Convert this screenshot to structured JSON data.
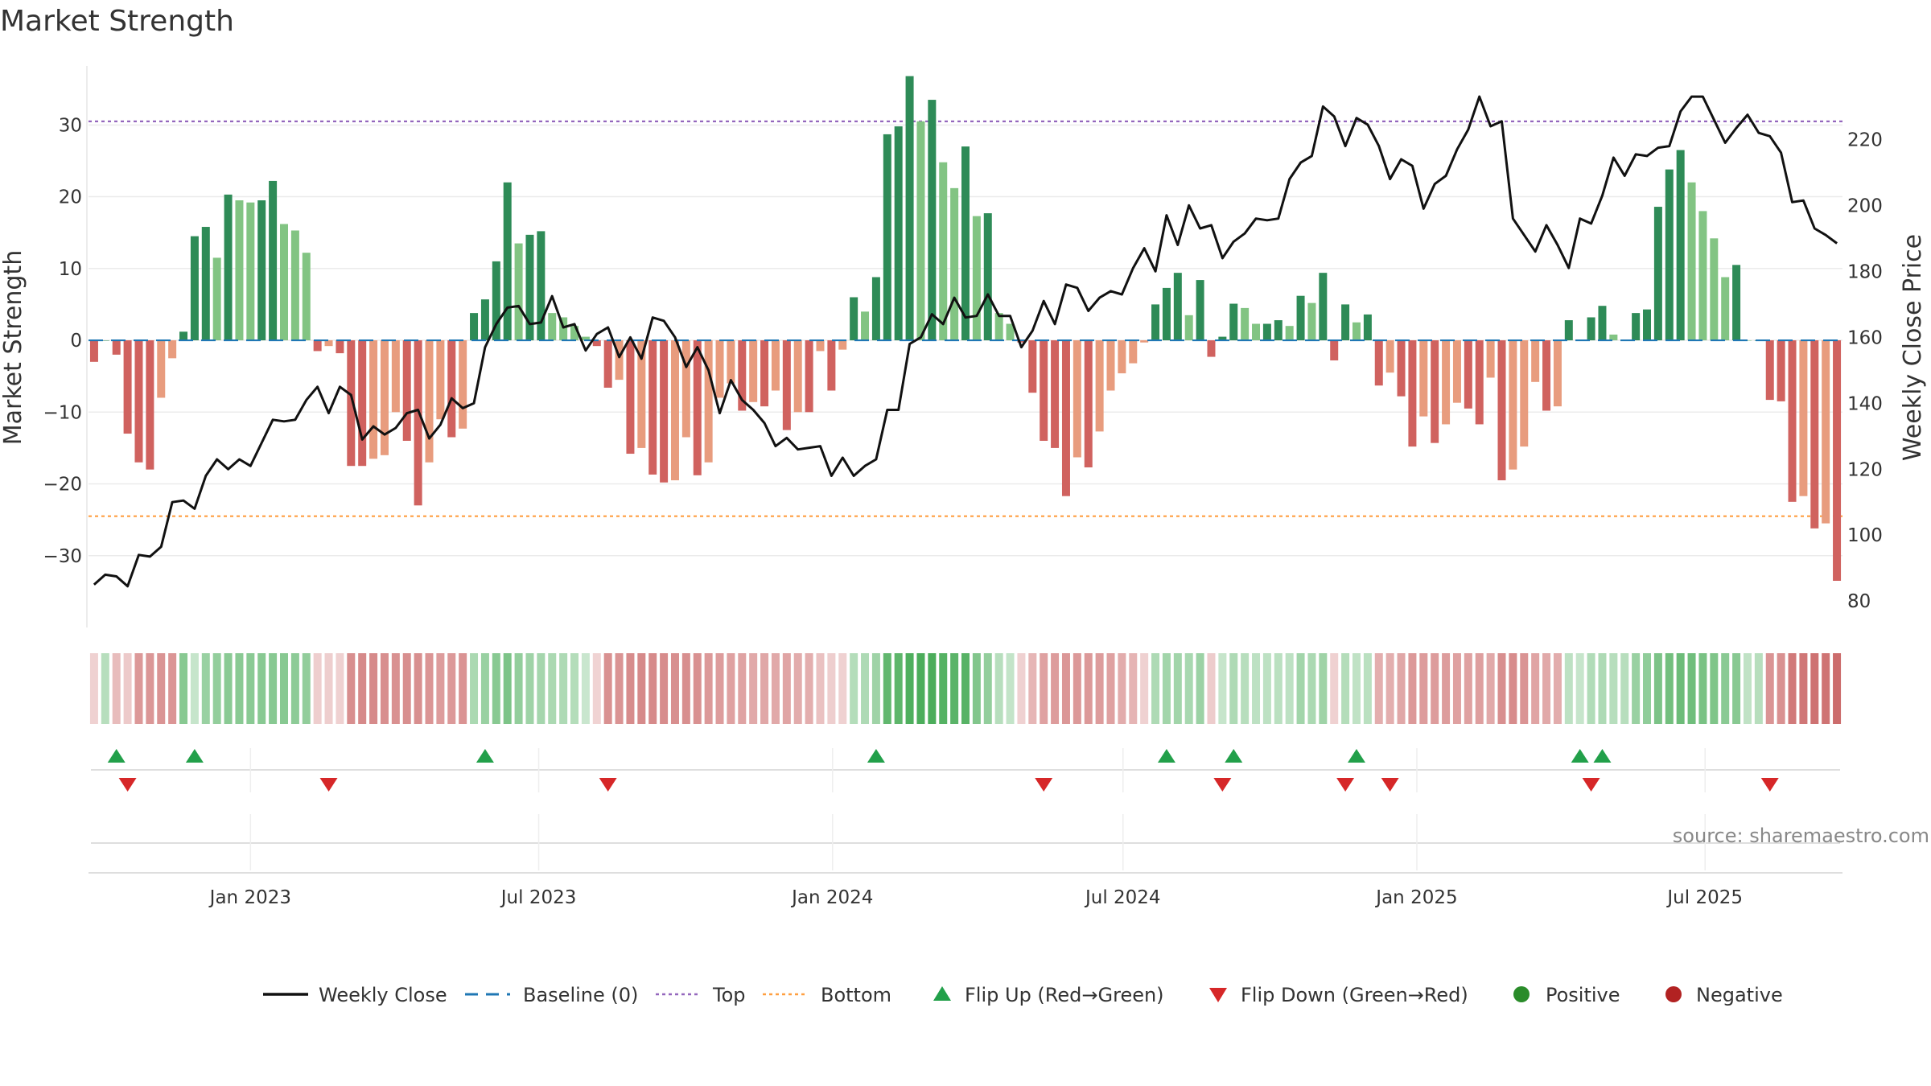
{
  "chart_data": {
    "type": "bar",
    "title": "Market Strength",
    "ylabel": "Market Strength",
    "y2label": "Weekly Close Price",
    "ylim": [
      -40,
      39
    ],
    "y2lim": [
      72,
      244
    ],
    "yticks": [
      30,
      20,
      10,
      0,
      -10,
      -20,
      -30
    ],
    "y2ticks": [
      220,
      200,
      180,
      160,
      140,
      120,
      100,
      80
    ],
    "xlim": [
      0,
      157
    ],
    "date_ticks": [
      {
        "label": "Jan 2023",
        "pos": 14.5
      },
      {
        "label": "Jul 2023",
        "pos": 40.3
      },
      {
        "label": "Jan 2024",
        "pos": 66.6
      },
      {
        "label": "Jul 2024",
        "pos": 92.6
      },
      {
        "label": "Jan 2025",
        "pos": 118.9
      },
      {
        "label": "Jul 2025",
        "pos": 144.7
      }
    ],
    "top": 30.5,
    "bottom": -24.5,
    "strength": [
      -3,
      0,
      -2,
      -13,
      -17,
      -18,
      -8,
      -2.5,
      1.2,
      14.5,
      15.8,
      11.5,
      20.3,
      19.5,
      19.2,
      19.5,
      22.2,
      16.2,
      15.3,
      12.2,
      -1.5,
      -0.8,
      -1.8,
      -17.5,
      -17.5,
      -16.5,
      -16,
      -10,
      -14,
      -23,
      -17,
      -11,
      -13.5,
      -12.3,
      3.8,
      5.7,
      11,
      22,
      13.5,
      14.7,
      15.2,
      3.8,
      3.2,
      2,
      0.5,
      -0.8,
      -6.6,
      -5.5,
      -15.8,
      -15,
      -18.7,
      -19.8,
      -19.5,
      -13.5,
      -18.8,
      -17,
      -8,
      -6,
      -9.8,
      -8.6,
      -9.2,
      -7,
      -12.5,
      -10,
      -10,
      -1.5,
      -7,
      -1.3,
      6,
      4,
      8.8,
      28.7,
      29.8,
      36.8,
      30.5,
      33.5,
      24.8,
      21.2,
      27,
      17.3,
      17.7,
      3.8,
      2.3,
      -0.3,
      -7.3,
      -14,
      -15,
      -21.7,
      -16.3,
      -17.7,
      -12.7,
      -7,
      -4.6,
      -3.2,
      -0.3,
      5,
      7.3,
      9.4,
      3.5,
      8.4,
      -2.3,
      0.5,
      5.1,
      4.5,
      2.3,
      2.3,
      2.8,
      2,
      6.2,
      5.2,
      9.4,
      -2.8,
      5,
      2.5,
      3.6,
      -6.3,
      -4.5,
      -7.8,
      -14.8,
      -10.6,
      -14.3,
      -11.7,
      -8.7,
      -9.5,
      -11.7,
      -5.2,
      -19.5,
      -18,
      -14.8,
      -5.8,
      -9.8,
      -9.2,
      2.8,
      0,
      3.2,
      4.8,
      0.8,
      0,
      3.8,
      4.3,
      18.6,
      23.8,
      26.5,
      22,
      18,
      14.2,
      8.8,
      10.5,
      0,
      0,
      -8.3,
      -8.5,
      -22.5,
      -21.7,
      -26.2,
      -25.5,
      -33.5
    ],
    "close": [
      85,
      88,
      87.5,
      84.5,
      94,
      93.5,
      96.5,
      110,
      110.5,
      108,
      118,
      123,
      120,
      123,
      121,
      128,
      135,
      134.5,
      135,
      141,
      145,
      137,
      145,
      142.5,
      129,
      133,
      130.5,
      132.5,
      137,
      138,
      129.3,
      133.5,
      141.5,
      138.5,
      140,
      157,
      164,
      169,
      169.5,
      164,
      164.5,
      172.5,
      163,
      164,
      156,
      161,
      163,
      154,
      160,
      153.5,
      166,
      165,
      160,
      151,
      157,
      150,
      137,
      147,
      141,
      138,
      134,
      127,
      129.5,
      126,
      126.5,
      127,
      118,
      123.5,
      118,
      121,
      123,
      138,
      138,
      158,
      160,
      167,
      164,
      172,
      166,
      166.5,
      173,
      166.5,
      166.5,
      157,
      162,
      171,
      164,
      176,
      175,
      168,
      172,
      174,
      173,
      181,
      187,
      180,
      197,
      188,
      200,
      193,
      194,
      184,
      189,
      191.5,
      196,
      195.5,
      196,
      208,
      213,
      215,
      230,
      227,
      218,
      226.5,
      224.5,
      218,
      208,
      214,
      212,
      199,
      206.5,
      209,
      217,
      223,
      233,
      224,
      225.5,
      196,
      191,
      186,
      194,
      188,
      181,
      196,
      194.5,
      203,
      214.5,
      209,
      215.5,
      215,
      217.5,
      218,
      228.5,
      233,
      233,
      226,
      219,
      223.5,
      227.5,
      222,
      221,
      216,
      201,
      201.5,
      193,
      191,
      188.5
    ],
    "heat_values": [
      10,
      20,
      26,
      15,
      52,
      54,
      56,
      55,
      52,
      10,
      40,
      44,
      50,
      50,
      50,
      52,
      52,
      52,
      48,
      45,
      12,
      12,
      10,
      60,
      64,
      64,
      60,
      58,
      60,
      60,
      55,
      50,
      52,
      57,
      28,
      40,
      52,
      59,
      44,
      36,
      32,
      28,
      26,
      22,
      8,
      8,
      58,
      56,
      62,
      64,
      64,
      62,
      60,
      60,
      58,
      52,
      50,
      46,
      45,
      40,
      42,
      40,
      44,
      38,
      36,
      22,
      12,
      10,
      22,
      26,
      36,
      78,
      80,
      90,
      92,
      92,
      86,
      82,
      84,
      56,
      44,
      20,
      12,
      10,
      30,
      46,
      50,
      54,
      52,
      52,
      50,
      46,
      38,
      32,
      10,
      26,
      34,
      34,
      30,
      38,
      14,
      10,
      26,
      20,
      16,
      16,
      18,
      16,
      34,
      28,
      36,
      10,
      22,
      14,
      18,
      36,
      36,
      42,
      52,
      50,
      50,
      50,
      46,
      46,
      48,
      40,
      60,
      62,
      56,
      44,
      40,
      38,
      16,
      10,
      24,
      26,
      20,
      20,
      40,
      46,
      60,
      66,
      70,
      68,
      62,
      58,
      50,
      52,
      14,
      20,
      56,
      58,
      76,
      78,
      82,
      80,
      86
    ],
    "flip_up": [
      2,
      9,
      35,
      70,
      96,
      102,
      113,
      133,
      135
    ],
    "flip_down": [
      3,
      21,
      46,
      85,
      101,
      112,
      116,
      134,
      150
    ],
    "colors": {
      "green_dark": "#2e8b57",
      "green_light": "#82c483",
      "red_dark": "#d0625f",
      "red_light": "#e89c7e",
      "price": "#111111",
      "baseline": "#1f77b4",
      "top_line": "#9467bd",
      "bottom_line": "#ff9f40",
      "flip_up": "#22a04a",
      "flip_down": "#d62728",
      "positive": "#2a8c2a",
      "negative": "#b22222"
    },
    "legend": [
      {
        "label": "Weekly Close",
        "icon": "solid-line"
      },
      {
        "label": "Baseline (0)",
        "icon": "dashed-line"
      },
      {
        "label": "Top",
        "icon": "dotted-line"
      },
      {
        "label": "Bottom",
        "icon": "dotted-line"
      },
      {
        "label": "Flip Up (Red→Green)",
        "icon": "triangle-up"
      },
      {
        "label": "Flip Down (Green→Red)",
        "icon": "triangle-down"
      },
      {
        "label": "Positive",
        "icon": "circle"
      },
      {
        "label": "Negative",
        "icon": "circle"
      }
    ]
  },
  "source": "source: sharemaestro.com"
}
